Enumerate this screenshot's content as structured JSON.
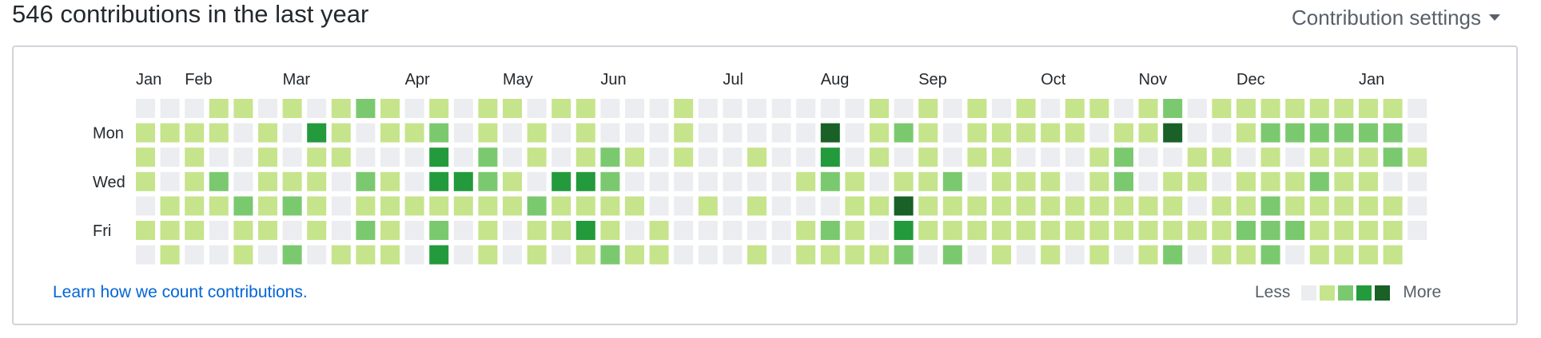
{
  "header": {
    "title": "546 contributions in the last year",
    "settings_label": "Contribution settings"
  },
  "colors": {
    "level0": "#ebedf0",
    "level1": "#c6e48b",
    "level2": "#7bc96f",
    "level3": "#239a3b",
    "level4": "#196127"
  },
  "graph": {
    "months": [
      "Jan",
      "Feb",
      "Mar",
      "Apr",
      "May",
      "Jun",
      "Jul",
      "Aug",
      "Sep",
      "Oct",
      "Nov",
      "Dec",
      "Jan"
    ],
    "month_start_weeks": [
      0,
      2,
      6,
      11,
      15,
      19,
      24,
      28,
      32,
      37,
      41,
      45,
      50
    ],
    "day_labels": [
      "Mon",
      "Wed",
      "Fri"
    ],
    "day_label_rows": [
      1,
      3,
      5
    ],
    "levels": [
      [
        0,
        0,
        0,
        1,
        1,
        0,
        1,
        0,
        1,
        2,
        1,
        0,
        1,
        0,
        1,
        1,
        0,
        1,
        1,
        0,
        0,
        0,
        1,
        0,
        0,
        0,
        0,
        0,
        0,
        0,
        1,
        0,
        1,
        0,
        1,
        0,
        1,
        0,
        1,
        1,
        0,
        1,
        2,
        0,
        1,
        1,
        1,
        1,
        1,
        1,
        1,
        1,
        0
      ],
      [
        1,
        1,
        1,
        1,
        0,
        1,
        0,
        3,
        1,
        0,
        1,
        1,
        2,
        0,
        1,
        0,
        1,
        0,
        1,
        0,
        0,
        0,
        1,
        0,
        0,
        0,
        0,
        0,
        4,
        0,
        1,
        2,
        1,
        0,
        1,
        1,
        1,
        1,
        1,
        0,
        1,
        1,
        4,
        0,
        0,
        1,
        2,
        2,
        2,
        2,
        2,
        2,
        0
      ],
      [
        1,
        0,
        1,
        0,
        0,
        1,
        0,
        1,
        1,
        0,
        0,
        0,
        3,
        0,
        2,
        0,
        1,
        0,
        1,
        2,
        1,
        0,
        1,
        0,
        0,
        1,
        0,
        0,
        3,
        0,
        1,
        0,
        1,
        0,
        1,
        1,
        0,
        0,
        0,
        1,
        2,
        0,
        0,
        1,
        1,
        0,
        1,
        0,
        1,
        1,
        1,
        2,
        1
      ],
      [
        1,
        0,
        1,
        2,
        0,
        1,
        1,
        1,
        0,
        2,
        1,
        0,
        3,
        3,
        2,
        1,
        0,
        3,
        3,
        2,
        0,
        0,
        0,
        0,
        0,
        0,
        0,
        1,
        2,
        1,
        0,
        1,
        1,
        2,
        0,
        1,
        1,
        1,
        0,
        1,
        2,
        0,
        1,
        1,
        0,
        1,
        1,
        1,
        2,
        1,
        1,
        0,
        0
      ],
      [
        0,
        1,
        1,
        1,
        2,
        1,
        2,
        1,
        0,
        1,
        1,
        1,
        1,
        1,
        1,
        1,
        2,
        1,
        1,
        1,
        1,
        0,
        0,
        1,
        0,
        1,
        0,
        0,
        0,
        1,
        1,
        4,
        1,
        1,
        1,
        1,
        1,
        1,
        1,
        1,
        1,
        1,
        1,
        0,
        1,
        1,
        2,
        1,
        1,
        1,
        1,
        1,
        0
      ],
      [
        1,
        1,
        1,
        0,
        1,
        1,
        0,
        1,
        0,
        2,
        1,
        0,
        2,
        0,
        1,
        0,
        1,
        1,
        3,
        1,
        0,
        1,
        0,
        0,
        0,
        0,
        0,
        1,
        2,
        1,
        0,
        3,
        1,
        1,
        1,
        1,
        1,
        1,
        1,
        1,
        1,
        1,
        1,
        1,
        1,
        2,
        2,
        2,
        1,
        1,
        1,
        1,
        0
      ],
      [
        0,
        1,
        0,
        0,
        1,
        0,
        2,
        0,
        1,
        1,
        1,
        0,
        3,
        0,
        1,
        0,
        1,
        0,
        1,
        2,
        1,
        1,
        0,
        0,
        0,
        1,
        0,
        1,
        1,
        1,
        1,
        2,
        0,
        2,
        0,
        1,
        0,
        1,
        0,
        1,
        0,
        1,
        2,
        0,
        1,
        1,
        2,
        0,
        1,
        1,
        1,
        1,
        0
      ]
    ]
  },
  "footer": {
    "learn_link": "Learn how we count contributions.",
    "legend_less": "Less",
    "legend_more": "More"
  }
}
